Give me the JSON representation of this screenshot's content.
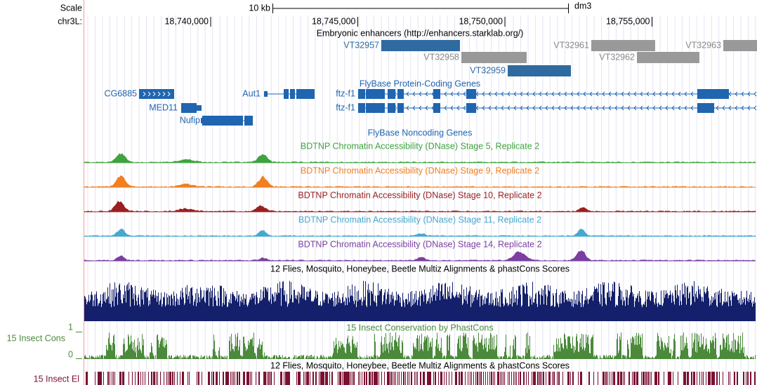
{
  "ruler": {
    "scale_label": "Scale",
    "scale_bar": "10 kb",
    "assembly": "dm3",
    "chrom": "chr3L:",
    "ticks": [
      {
        "value": 18740000,
        "label": "18,740,000"
      },
      {
        "value": 18745000,
        "label": "18,745,000"
      },
      {
        "value": 18750000,
        "label": "18,750,000"
      },
      {
        "value": 18755000,
        "label": "18,755,000"
      }
    ]
  },
  "enhancers": {
    "title": "Embryonic enhancers (http://enhancers.starklab.org/)",
    "items": [
      {
        "label": "VT32957",
        "color": "#2f6aa0"
      },
      {
        "label": "VT32958",
        "color": "#999999"
      },
      {
        "label": "VT32959",
        "color": "#2f6aa0"
      },
      {
        "label": "VT32961",
        "color": "#999999"
      },
      {
        "label": "VT32962",
        "color": "#999999"
      },
      {
        "label": "VT32963",
        "color": "#999999"
      }
    ]
  },
  "coding_genes": {
    "title": "FlyBase Protein-Coding Genes",
    "color": "#1f65b0",
    "items": [
      {
        "label": "CG6885"
      },
      {
        "label": "MED11"
      },
      {
        "label": "Nufip"
      },
      {
        "label": "Aut1"
      },
      {
        "label": "ftz-f1"
      },
      {
        "label": "ftz-f1"
      }
    ]
  },
  "noncoding_genes": {
    "title": "FlyBase Noncoding Genes"
  },
  "dnase_tracks": [
    {
      "title": "BDTNP Chromatin Accessibility (DNase) Stage 5, Replicate 2",
      "color": "#3fa33f"
    },
    {
      "title": "BDTNP Chromatin Accessibility (DNase) Stage 9, Replicate 2",
      "color": "#f28020"
    },
    {
      "title": "BDTNP Chromatin Accessibility (DNase) Stage 10, Replicate 2",
      "color": "#9a2020"
    },
    {
      "title": "BDTNP Chromatin Accessibility (DNase) Stage 11, Replicate 2",
      "color": "#45a8d0"
    },
    {
      "title": "BDTNP Chromatin Accessibility (DNase) Stage 14, Replicate 2",
      "color": "#7a3fa0"
    }
  ],
  "multiz": {
    "title": "12 Flies, Mosquito, Honeybee, Beetle Multiz Alignments & phastCons Scores",
    "color": "#14206b"
  },
  "phastcons": {
    "title": "15 Insect Conservation by PhastCons",
    "side_label": "15 Insect Cons",
    "max_label": "1",
    "min_label": "0",
    "color": "#4a8a3a"
  },
  "elements": {
    "title": "12 Flies, Mosquito, Honeybee, Beetle Multiz Alignments & phastCons Scores",
    "side_label": "15 Insect El",
    "color": "#7a1030"
  }
}
